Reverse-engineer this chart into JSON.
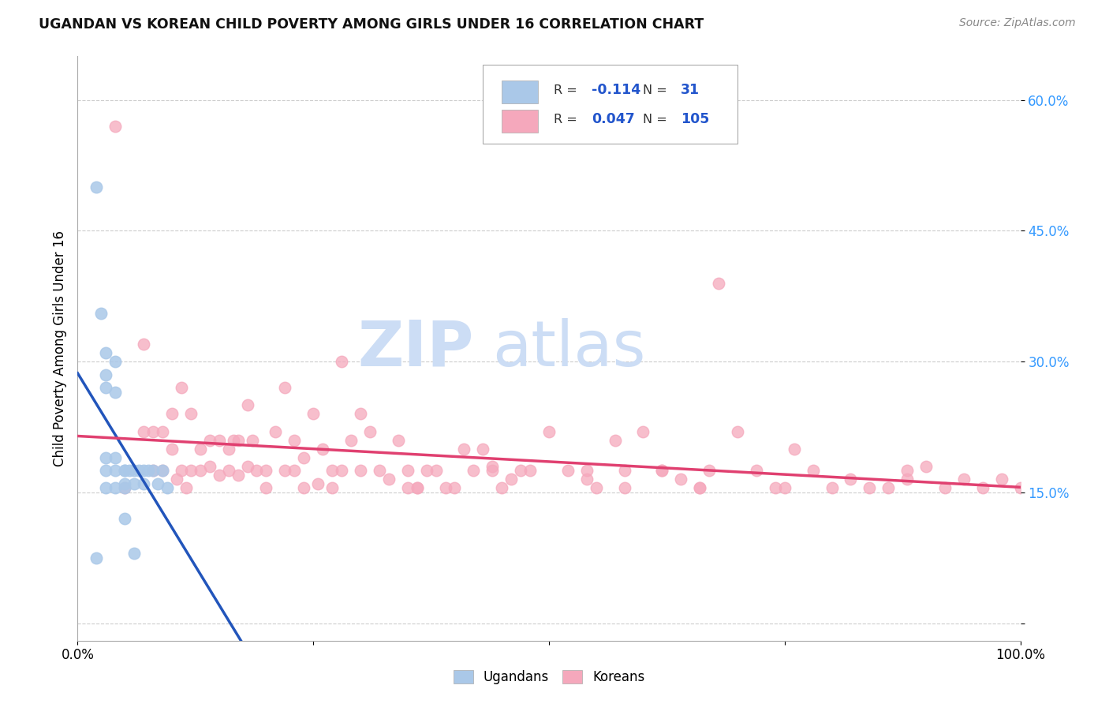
{
  "title": "UGANDAN VS KOREAN CHILD POVERTY AMONG GIRLS UNDER 16 CORRELATION CHART",
  "source": "Source: ZipAtlas.com",
  "ylabel": "Child Poverty Among Girls Under 16",
  "xlim": [
    0.0,
    1.0
  ],
  "ylim": [
    -0.02,
    0.65
  ],
  "right_yticks": [
    0.0,
    0.15,
    0.3,
    0.45,
    0.6
  ],
  "right_yticklabels": [
    "",
    "15.0%",
    "30.0%",
    "45.0%",
    "60.0%"
  ],
  "ugandan_R": -0.114,
  "ugandan_N": 31,
  "korean_R": 0.047,
  "korean_N": 105,
  "ugandan_color": "#aac8e8",
  "ugandan_line_color": "#2255bb",
  "korean_color": "#f5a8bc",
  "korean_line_color": "#e04070",
  "watermark_zip": "ZIP",
  "watermark_atlas": "atlas",
  "watermark_color": "#ccddf5",
  "background_color": "#ffffff",
  "grid_color": "#cccccc",
  "ugandan_x": [
    0.02,
    0.025,
    0.03,
    0.03,
    0.03,
    0.03,
    0.03,
    0.04,
    0.04,
    0.04,
    0.04,
    0.05,
    0.05,
    0.05,
    0.05,
    0.055,
    0.06,
    0.06,
    0.065,
    0.07,
    0.07,
    0.075,
    0.08,
    0.085,
    0.09,
    0.095,
    0.02,
    0.03,
    0.04,
    0.05,
    0.06
  ],
  "ugandan_y": [
    0.5,
    0.355,
    0.31,
    0.285,
    0.27,
    0.19,
    0.175,
    0.3,
    0.265,
    0.19,
    0.175,
    0.175,
    0.175,
    0.16,
    0.155,
    0.175,
    0.175,
    0.16,
    0.175,
    0.175,
    0.16,
    0.175,
    0.175,
    0.16,
    0.175,
    0.155,
    0.075,
    0.155,
    0.155,
    0.12,
    0.08
  ],
  "korean_x": [
    0.04,
    0.07,
    0.07,
    0.08,
    0.08,
    0.09,
    0.09,
    0.1,
    0.1,
    0.105,
    0.11,
    0.11,
    0.115,
    0.12,
    0.12,
    0.13,
    0.13,
    0.14,
    0.14,
    0.15,
    0.15,
    0.16,
    0.16,
    0.165,
    0.17,
    0.17,
    0.18,
    0.18,
    0.185,
    0.19,
    0.2,
    0.2,
    0.21,
    0.22,
    0.22,
    0.23,
    0.24,
    0.24,
    0.25,
    0.255,
    0.26,
    0.27,
    0.27,
    0.28,
    0.28,
    0.29,
    0.3,
    0.3,
    0.31,
    0.32,
    0.33,
    0.34,
    0.35,
    0.36,
    0.37,
    0.38,
    0.39,
    0.4,
    0.41,
    0.42,
    0.43,
    0.44,
    0.45,
    0.46,
    0.47,
    0.5,
    0.52,
    0.54,
    0.55,
    0.57,
    0.58,
    0.6,
    0.62,
    0.64,
    0.66,
    0.67,
    0.68,
    0.7,
    0.72,
    0.74,
    0.76,
    0.78,
    0.8,
    0.82,
    0.84,
    0.86,
    0.88,
    0.9,
    0.92,
    0.94,
    0.96,
    0.98,
    1.0,
    0.05,
    0.35,
    0.54,
    0.66,
    0.88,
    0.48,
    0.58,
    0.62,
    0.75,
    0.23,
    0.36,
    0.44
  ],
  "korean_y": [
    0.57,
    0.32,
    0.22,
    0.22,
    0.175,
    0.22,
    0.175,
    0.24,
    0.2,
    0.165,
    0.27,
    0.175,
    0.155,
    0.24,
    0.175,
    0.2,
    0.175,
    0.21,
    0.18,
    0.21,
    0.17,
    0.2,
    0.175,
    0.21,
    0.21,
    0.17,
    0.25,
    0.18,
    0.21,
    0.175,
    0.175,
    0.155,
    0.22,
    0.27,
    0.175,
    0.21,
    0.19,
    0.155,
    0.24,
    0.16,
    0.2,
    0.175,
    0.155,
    0.3,
    0.175,
    0.21,
    0.24,
    0.175,
    0.22,
    0.175,
    0.165,
    0.21,
    0.175,
    0.155,
    0.175,
    0.175,
    0.155,
    0.155,
    0.2,
    0.175,
    0.2,
    0.18,
    0.155,
    0.165,
    0.175,
    0.22,
    0.175,
    0.165,
    0.155,
    0.21,
    0.175,
    0.22,
    0.175,
    0.165,
    0.155,
    0.175,
    0.39,
    0.22,
    0.175,
    0.155,
    0.2,
    0.175,
    0.155,
    0.165,
    0.155,
    0.155,
    0.165,
    0.18,
    0.155,
    0.165,
    0.155,
    0.165,
    0.155,
    0.155,
    0.155,
    0.175,
    0.155,
    0.175,
    0.175,
    0.155,
    0.175,
    0.155,
    0.175,
    0.155,
    0.175
  ]
}
